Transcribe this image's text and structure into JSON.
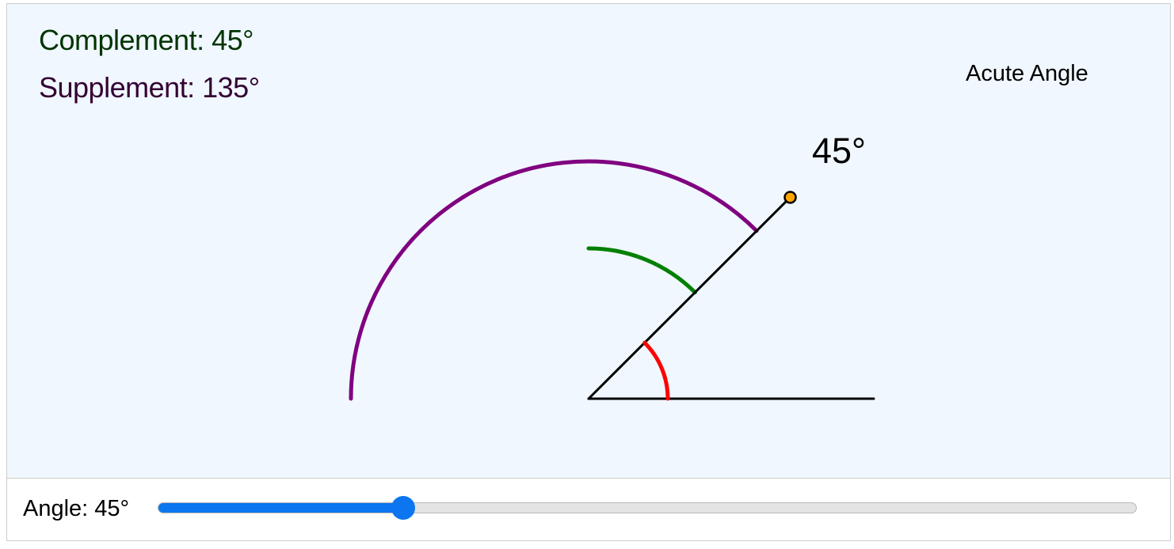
{
  "info": {
    "complement": "Complement: 45°",
    "supplement": "Supplement: 135°",
    "angle_type": "Acute Angle",
    "angle_label": "45°"
  },
  "controls": {
    "slider_label": "Angle: 45°",
    "slider_min": 0,
    "slider_max": 180,
    "slider_value": 45
  },
  "colors": {
    "background": "#f0f7ff",
    "complement_arc": "#008000",
    "supplement_arc": "#800080",
    "angle_arc": "#ff0000",
    "ray": "#000000",
    "handle": "#ffa500",
    "slider_accent": "#0b76ef"
  }
}
